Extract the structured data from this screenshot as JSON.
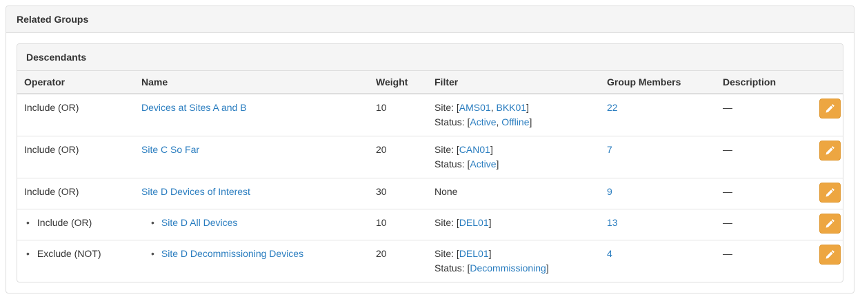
{
  "outer_panel": {
    "title": "Related Groups"
  },
  "descendants_panel": {
    "title": "Descendants"
  },
  "colors": {
    "link": "#287cbf",
    "heading_bg": "#f5f5f5",
    "border": "#dddddd",
    "edit_button_bg": "#eda641",
    "text": "#333333"
  },
  "table": {
    "bullet": "•",
    "columns": [
      {
        "label": "Operator"
      },
      {
        "label": "Name"
      },
      {
        "label": "Weight"
      },
      {
        "label": "Filter"
      },
      {
        "label": "Group Members"
      },
      {
        "label": "Description"
      },
      {
        "label": ""
      }
    ],
    "edit_button_icon": "pencil-icon",
    "rows": [
      {
        "indent": false,
        "operator": "Include (OR)",
        "name": "Devices at Sites A and B",
        "weight": "10",
        "filter": [
          [
            {
              "t": "text",
              "v": "Site: ["
            },
            {
              "t": "link",
              "v": "AMS01"
            },
            {
              "t": "text",
              "v": ", "
            },
            {
              "t": "link",
              "v": "BKK01"
            },
            {
              "t": "text",
              "v": "]"
            }
          ],
          [
            {
              "t": "text",
              "v": "Status: ["
            },
            {
              "t": "link",
              "v": "Active"
            },
            {
              "t": "text",
              "v": ", "
            },
            {
              "t": "link",
              "v": "Offline"
            },
            {
              "t": "text",
              "v": "]"
            }
          ]
        ],
        "members": "22",
        "description": "—"
      },
      {
        "indent": false,
        "operator": "Include (OR)",
        "name": "Site C So Far",
        "weight": "20",
        "filter": [
          [
            {
              "t": "text",
              "v": "Site: ["
            },
            {
              "t": "link",
              "v": "CAN01"
            },
            {
              "t": "text",
              "v": "]"
            }
          ],
          [
            {
              "t": "text",
              "v": "Status: ["
            },
            {
              "t": "link",
              "v": "Active"
            },
            {
              "t": "text",
              "v": "]"
            }
          ]
        ],
        "members": "7",
        "description": "—"
      },
      {
        "indent": false,
        "operator": "Include (OR)",
        "name": "Site D Devices of Interest",
        "weight": "30",
        "filter": [
          [
            {
              "t": "text",
              "v": "None"
            }
          ]
        ],
        "members": "9",
        "description": "—"
      },
      {
        "indent": true,
        "operator": "Include (OR)",
        "name": "Site D All Devices",
        "weight": "10",
        "filter": [
          [
            {
              "t": "text",
              "v": "Site: ["
            },
            {
              "t": "link",
              "v": "DEL01"
            },
            {
              "t": "text",
              "v": "]"
            }
          ]
        ],
        "members": "13",
        "description": "—"
      },
      {
        "indent": true,
        "operator": "Exclude (NOT)",
        "name": "Site D Decommissioning Devices",
        "weight": "20",
        "filter": [
          [
            {
              "t": "text",
              "v": "Site: ["
            },
            {
              "t": "link",
              "v": "DEL01"
            },
            {
              "t": "text",
              "v": "]"
            }
          ],
          [
            {
              "t": "text",
              "v": "Status: ["
            },
            {
              "t": "link",
              "v": "Decommissioning"
            },
            {
              "t": "text",
              "v": "]"
            }
          ]
        ],
        "members": "4",
        "description": "—"
      }
    ]
  }
}
